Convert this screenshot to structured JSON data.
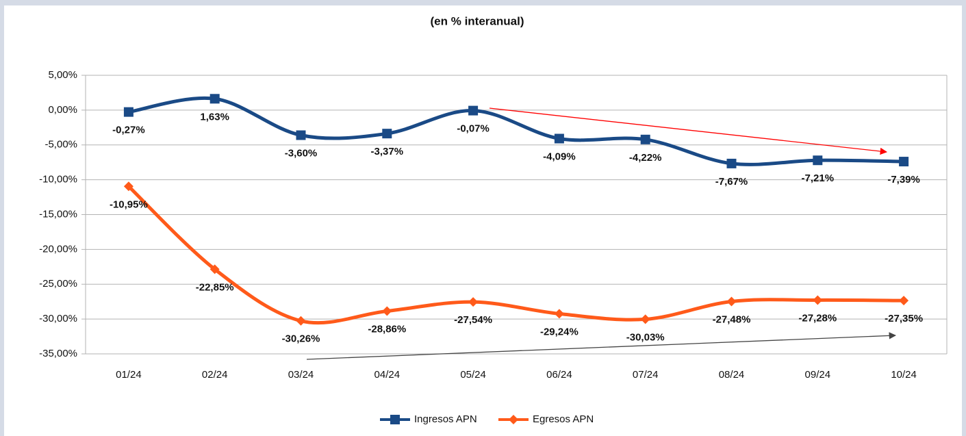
{
  "chart_data": {
    "type": "line",
    "title": "(en % interanual)",
    "categories": [
      "01/24",
      "02/24",
      "03/24",
      "04/24",
      "05/24",
      "06/24",
      "07/24",
      "08/24",
      "09/24",
      "10/24"
    ],
    "series": [
      {
        "name": "Ingresos APN",
        "color": "#1a4a86",
        "marker": "square",
        "values": [
          -0.27,
          1.63,
          -3.6,
          -3.37,
          -0.07,
          -4.09,
          -4.22,
          -7.67,
          -7.21,
          -7.39
        ],
        "value_labels": [
          "-0,27%",
          "1,63%",
          "-3,60%",
          "-3,37%",
          "-0,07%",
          "-4,09%",
          "-4,22%",
          "-7,67%",
          "-7,21%",
          "-7,39%"
        ]
      },
      {
        "name": "Egresos APN",
        "color": "#ff5a1a",
        "marker": "diamond",
        "values": [
          -10.95,
          -22.85,
          -30.26,
          -28.86,
          -27.54,
          -29.24,
          -30.03,
          -27.48,
          -27.28,
          -27.35
        ],
        "value_labels": [
          "-10,95%",
          "-22,85%",
          "-30,26%",
          "-28,86%",
          "-27,54%",
          "-29,24%",
          "-30,03%",
          "-27,48%",
          "-27,28%",
          "-27,35%"
        ]
      }
    ],
    "ylim": [
      -35,
      5
    ],
    "yticks": [
      {
        "value": 5,
        "label": "5,00%"
      },
      {
        "value": 0,
        "label": "0,00%"
      },
      {
        "value": -5,
        "label": "-5,00%"
      },
      {
        "value": -10,
        "label": "-10,00%"
      },
      {
        "value": -15,
        "label": "-15,00%"
      },
      {
        "value": -20,
        "label": "-20,00%"
      },
      {
        "value": -25,
        "label": "-25,00%"
      },
      {
        "value": -30,
        "label": "-30,00%"
      },
      {
        "value": -35,
        "label": "-35,00%"
      }
    ],
    "grid": true,
    "legend": "bottom"
  }
}
